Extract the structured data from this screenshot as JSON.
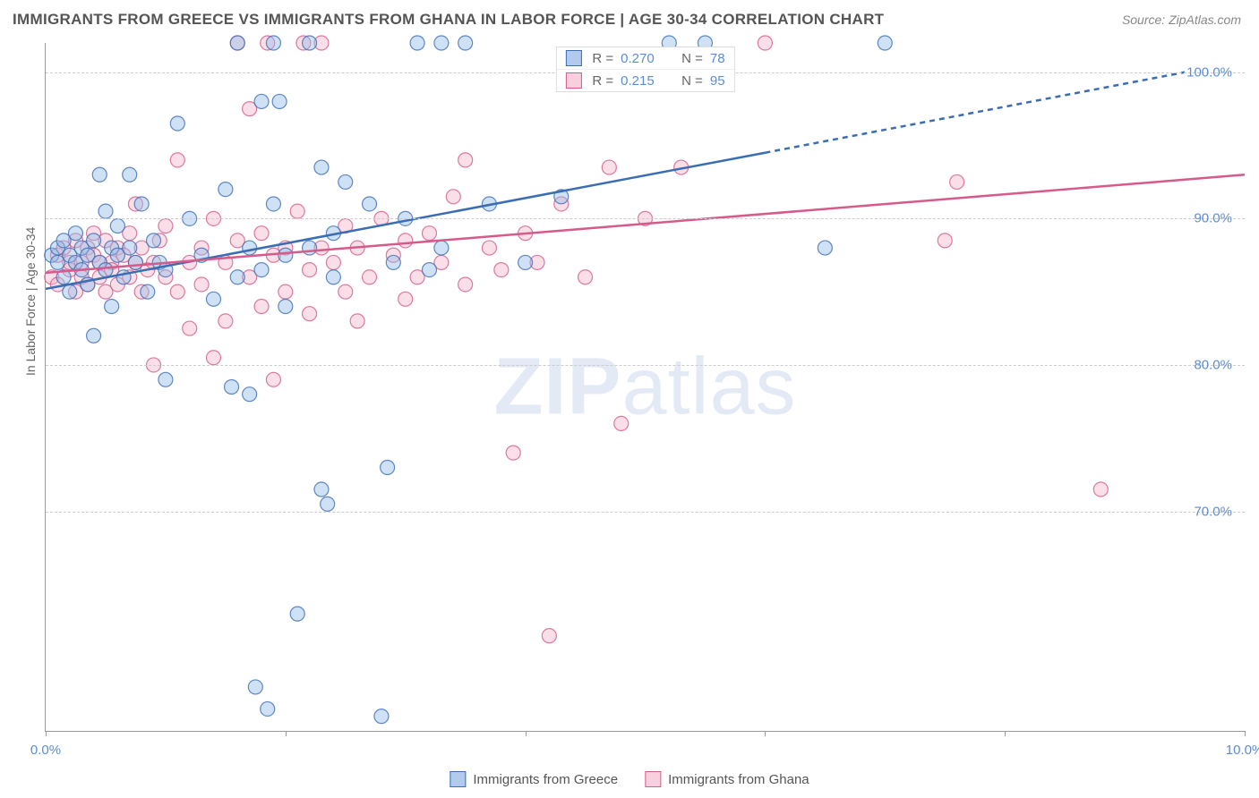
{
  "title": "IMMIGRANTS FROM GREECE VS IMMIGRANTS FROM GHANA IN LABOR FORCE | AGE 30-34 CORRELATION CHART",
  "source": "Source: ZipAtlas.com",
  "watermark_bold": "ZIP",
  "watermark_light": "atlas",
  "chart": {
    "type": "scatter",
    "background_color": "#ffffff",
    "grid_color": "#cccccc",
    "grid_dash": "4,4",
    "axis_color": "#999999",
    "ylabel": "In Labor Force | Age 30-34",
    "ylabel_color": "#666666",
    "ylabel_fontsize": 14,
    "xlim": [
      0,
      10
    ],
    "ylim": [
      55,
      102
    ],
    "xticks": [
      0,
      2,
      4,
      6,
      8,
      10
    ],
    "xtick_labels": [
      "0.0%",
      "",
      "",
      "",
      "",
      "10.0%"
    ],
    "yticks": [
      70,
      80,
      90,
      100
    ],
    "ytick_labels": [
      "70.0%",
      "80.0%",
      "90.0%",
      "100.0%"
    ],
    "tick_color": "#5b8dd6",
    "tick_fontsize": 15,
    "marker_radius": 8,
    "marker_opacity": 0.45,
    "series": [
      {
        "name": "Immigrants from Greece",
        "color_fill": "#94bce8",
        "color_stroke": "#3b6db5",
        "trend": {
          "x1": 0,
          "y1": 85.2,
          "x2_solid": 6.0,
          "y2_solid": 94.5,
          "x2_dash": 9.5,
          "y2_dash": 100.0,
          "width": 2.5
        },
        "R": "0.270",
        "N": "78",
        "points": [
          [
            0.05,
            87.5
          ],
          [
            0.1,
            87.0
          ],
          [
            0.1,
            88.0
          ],
          [
            0.15,
            86.0
          ],
          [
            0.15,
            88.5
          ],
          [
            0.2,
            87.5
          ],
          [
            0.2,
            85.0
          ],
          [
            0.25,
            87.0
          ],
          [
            0.25,
            89.0
          ],
          [
            0.3,
            86.5
          ],
          [
            0.3,
            88.0
          ],
          [
            0.35,
            87.5
          ],
          [
            0.35,
            85.5
          ],
          [
            0.4,
            88.5
          ],
          [
            0.4,
            82.0
          ],
          [
            0.45,
            87.0
          ],
          [
            0.45,
            93.0
          ],
          [
            0.5,
            86.5
          ],
          [
            0.5,
            90.5
          ],
          [
            0.55,
            88.0
          ],
          [
            0.55,
            84.0
          ],
          [
            0.6,
            87.5
          ],
          [
            0.6,
            89.5
          ],
          [
            0.65,
            86.0
          ],
          [
            0.7,
            88.0
          ],
          [
            0.7,
            93.0
          ],
          [
            0.75,
            87.0
          ],
          [
            0.8,
            91.0
          ],
          [
            0.85,
            85.0
          ],
          [
            0.9,
            88.5
          ],
          [
            0.95,
            87.0
          ],
          [
            1.0,
            79.0
          ],
          [
            1.0,
            86.5
          ],
          [
            1.1,
            96.5
          ],
          [
            1.2,
            90.0
          ],
          [
            1.3,
            87.5
          ],
          [
            1.4,
            84.5
          ],
          [
            1.5,
            92.0
          ],
          [
            1.55,
            78.5
          ],
          [
            1.6,
            86.0
          ],
          [
            1.6,
            102.0
          ],
          [
            1.7,
            88.0
          ],
          [
            1.7,
            78.0
          ],
          [
            1.75,
            58.0
          ],
          [
            1.8,
            98.0
          ],
          [
            1.8,
            86.5
          ],
          [
            1.85,
            56.5
          ],
          [
            1.9,
            91.0
          ],
          [
            1.9,
            102.0
          ],
          [
            1.95,
            98.0
          ],
          [
            2.0,
            84.0
          ],
          [
            2.0,
            87.5
          ],
          [
            2.1,
            63.0
          ],
          [
            2.2,
            102.0
          ],
          [
            2.2,
            88.0
          ],
          [
            2.3,
            93.5
          ],
          [
            2.3,
            71.5
          ],
          [
            2.35,
            70.5
          ],
          [
            2.4,
            86.0
          ],
          [
            2.4,
            89.0
          ],
          [
            2.5,
            92.5
          ],
          [
            2.7,
            91.0
          ],
          [
            2.8,
            56.0
          ],
          [
            2.85,
            73.0
          ],
          [
            2.9,
            87.0
          ],
          [
            3.0,
            90.0
          ],
          [
            3.1,
            102.0
          ],
          [
            3.2,
            86.5
          ],
          [
            3.3,
            88.0
          ],
          [
            3.3,
            102.0
          ],
          [
            3.5,
            102.0
          ],
          [
            3.7,
            91.0
          ],
          [
            4.0,
            87.0
          ],
          [
            4.3,
            91.5
          ],
          [
            5.2,
            102.0
          ],
          [
            5.5,
            102.0
          ],
          [
            6.5,
            88.0
          ],
          [
            7.0,
            102.0
          ]
        ]
      },
      {
        "name": "Immigrants from Ghana",
        "color_fill": "#f5b8cc",
        "color_stroke": "#d65a8a",
        "trend": {
          "x1": 0,
          "y1": 86.3,
          "x2_solid": 10.0,
          "y2_solid": 93.0,
          "x2_dash": 10.0,
          "y2_dash": 93.0,
          "width": 2.5
        },
        "R": "0.215",
        "N": "95",
        "points": [
          [
            0.05,
            86.0
          ],
          [
            0.1,
            87.5
          ],
          [
            0.1,
            85.5
          ],
          [
            0.15,
            88.0
          ],
          [
            0.2,
            86.5
          ],
          [
            0.2,
            87.0
          ],
          [
            0.25,
            85.0
          ],
          [
            0.25,
            88.5
          ],
          [
            0.3,
            87.0
          ],
          [
            0.3,
            86.0
          ],
          [
            0.35,
            88.0
          ],
          [
            0.35,
            85.5
          ],
          [
            0.4,
            87.5
          ],
          [
            0.4,
            89.0
          ],
          [
            0.45,
            86.0
          ],
          [
            0.45,
            87.0
          ],
          [
            0.5,
            88.5
          ],
          [
            0.5,
            85.0
          ],
          [
            0.55,
            87.0
          ],
          [
            0.55,
            86.5
          ],
          [
            0.6,
            88.0
          ],
          [
            0.6,
            85.5
          ],
          [
            0.65,
            87.5
          ],
          [
            0.7,
            86.0
          ],
          [
            0.7,
            89.0
          ],
          [
            0.75,
            87.0
          ],
          [
            0.75,
            91.0
          ],
          [
            0.8,
            85.0
          ],
          [
            0.8,
            88.0
          ],
          [
            0.85,
            86.5
          ],
          [
            0.9,
            87.0
          ],
          [
            0.9,
            80.0
          ],
          [
            0.95,
            88.5
          ],
          [
            1.0,
            86.0
          ],
          [
            1.0,
            89.5
          ],
          [
            1.1,
            85.0
          ],
          [
            1.1,
            94.0
          ],
          [
            1.2,
            87.0
          ],
          [
            1.2,
            82.5
          ],
          [
            1.3,
            88.0
          ],
          [
            1.3,
            85.5
          ],
          [
            1.4,
            90.0
          ],
          [
            1.4,
            80.5
          ],
          [
            1.5,
            87.0
          ],
          [
            1.5,
            83.0
          ],
          [
            1.6,
            88.5
          ],
          [
            1.6,
            102.0
          ],
          [
            1.7,
            86.0
          ],
          [
            1.7,
            97.5
          ],
          [
            1.8,
            89.0
          ],
          [
            1.8,
            84.0
          ],
          [
            1.85,
            102.0
          ],
          [
            1.9,
            87.5
          ],
          [
            1.9,
            79.0
          ],
          [
            2.0,
            88.0
          ],
          [
            2.0,
            85.0
          ],
          [
            2.1,
            90.5
          ],
          [
            2.15,
            102.0
          ],
          [
            2.2,
            86.5
          ],
          [
            2.2,
            83.5
          ],
          [
            2.3,
            88.0
          ],
          [
            2.3,
            102.0
          ],
          [
            2.4,
            87.0
          ],
          [
            2.5,
            89.5
          ],
          [
            2.5,
            85.0
          ],
          [
            2.6,
            88.0
          ],
          [
            2.6,
            83.0
          ],
          [
            2.7,
            86.0
          ],
          [
            2.8,
            90.0
          ],
          [
            2.9,
            87.5
          ],
          [
            3.0,
            88.5
          ],
          [
            3.0,
            84.5
          ],
          [
            3.1,
            86.0
          ],
          [
            3.2,
            89.0
          ],
          [
            3.3,
            87.0
          ],
          [
            3.4,
            91.5
          ],
          [
            3.5,
            85.5
          ],
          [
            3.5,
            94.0
          ],
          [
            3.7,
            88.0
          ],
          [
            3.8,
            86.5
          ],
          [
            3.9,
            74.0
          ],
          [
            4.0,
            89.0
          ],
          [
            4.1,
            87.0
          ],
          [
            4.2,
            61.5
          ],
          [
            4.3,
            91.0
          ],
          [
            4.5,
            86.0
          ],
          [
            4.7,
            93.5
          ],
          [
            4.8,
            76.0
          ],
          [
            5.0,
            90.0
          ],
          [
            5.3,
            93.5
          ],
          [
            5.5,
            99.5
          ],
          [
            6.0,
            102.0
          ],
          [
            7.5,
            88.5
          ],
          [
            7.6,
            92.5
          ],
          [
            8.8,
            71.5
          ]
        ]
      }
    ],
    "legend": {
      "top_R_label": "R =",
      "top_N_label": "N =",
      "bottom_items": [
        "Immigrants from Greece",
        "Immigrants from Ghana"
      ]
    }
  }
}
